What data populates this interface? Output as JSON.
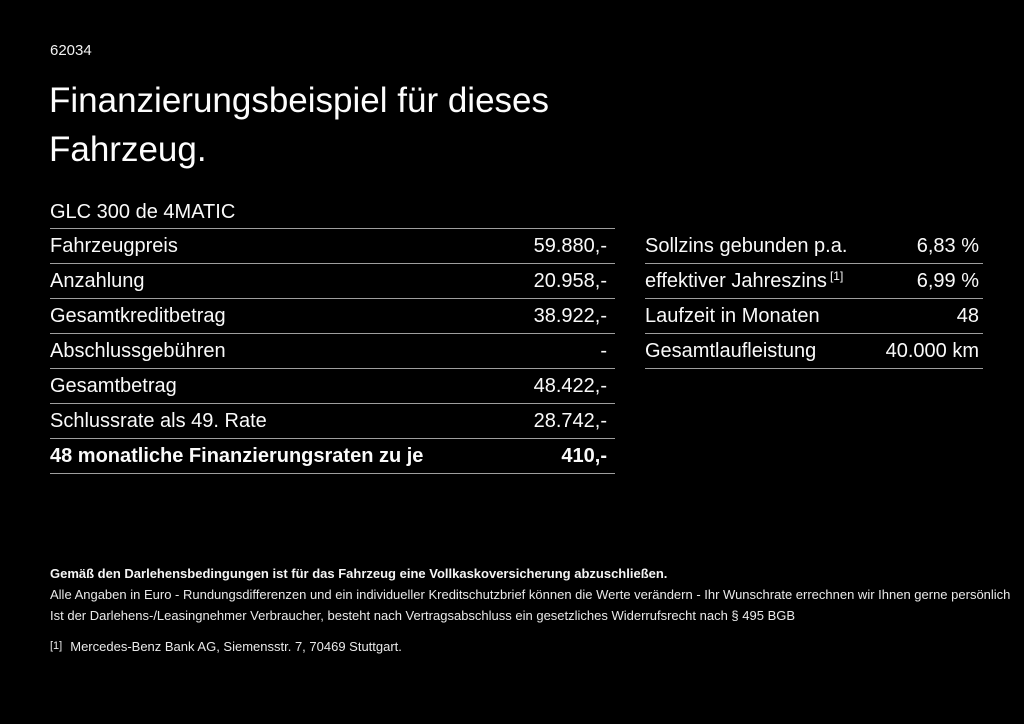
{
  "page": {
    "doc_number": "62034",
    "title_line1": "Finanzierungsbeispiel für dieses",
    "title_line2": "Fahrzeug.",
    "model": "GLC 300 de 4MATIC"
  },
  "finance_table": {
    "rows": [
      {
        "label": "Fahrzeugpreis",
        "value": "59.880,-"
      },
      {
        "label": "Anzahlung",
        "value": "20.958,-"
      },
      {
        "label": "Gesamtkreditbetrag",
        "value": "38.922,-"
      },
      {
        "label": "Abschlussgebühren",
        "value": "-"
      },
      {
        "label": "Gesamtbetrag",
        "value": "48.422,-"
      },
      {
        "label": "Schlussrate als 49. Rate",
        "value": "28.742,-"
      },
      {
        "label": "48 monatliche Finanzierungsraten zu je",
        "value": "410,-"
      }
    ]
  },
  "conditions_table": {
    "rows": [
      {
        "label": "Sollzins gebunden p.a.",
        "sup": "",
        "value": "6,83 %"
      },
      {
        "label": "effektiver Jahreszins",
        "sup": "[1]",
        "value": "6,99 %"
      },
      {
        "label": "Laufzeit in Monaten",
        "sup": "",
        "value": "48"
      },
      {
        "label": "Gesamtlaufleistung",
        "sup": "",
        "value": "40.000 km"
      }
    ]
  },
  "footer": {
    "insurance_note": "Gemäß den Darlehensbedingungen ist für das Fahrzeug eine Vollkaskoversicherung abzuschließen.",
    "disclaimer_line1": "Alle Angaben in Euro - Rundungsdifferenzen und ein individueller Kreditschutzbrief können die Werte verändern - Ihr Wunschrate errechnen wir Ihnen gerne persönlich",
    "disclaimer_line2": "Ist der Darlehens-/Leasingnehmer Verbraucher, besteht nach Vertragsabschluss ein gesetzliches Widerrufsrecht nach § 495 BGB",
    "footnote_marker": "[1]",
    "footnote_text": "Mercedes-Benz Bank AG, Siemensstr. 7, 70469 Stuttgart."
  },
  "colors": {
    "background": "#000000",
    "text": "#fafafa",
    "divider": "#9e9e9e"
  }
}
